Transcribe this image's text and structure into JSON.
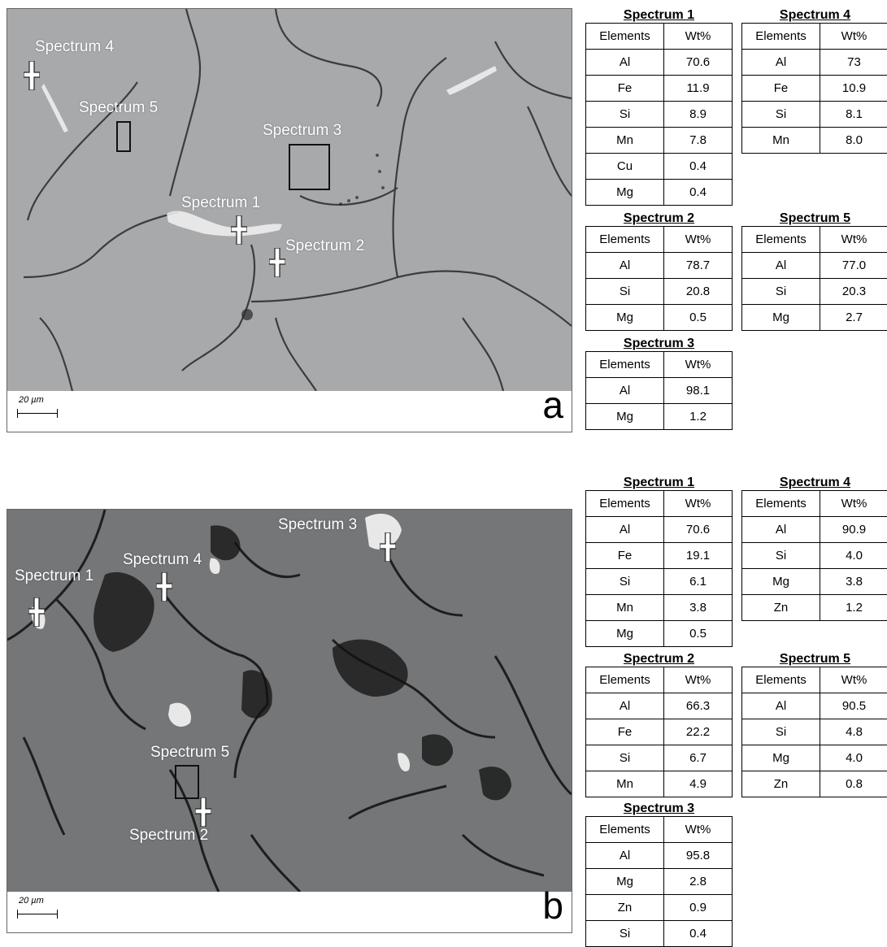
{
  "panels": [
    {
      "letter": "a",
      "scale_label": "20 µm",
      "spectra_labels": [
        "Spectrum 4",
        "Spectrum 5",
        "Spectrum 3",
        "Spectrum 1",
        "Spectrum 2"
      ],
      "tables": [
        {
          "title": "Spectrum 1",
          "header": [
            "Elements",
            "Wt%"
          ],
          "rows": [
            [
              "Al",
              "70.6"
            ],
            [
              "Fe",
              "11.9"
            ],
            [
              "Si",
              "8.9"
            ],
            [
              "Mn",
              "7.8"
            ],
            [
              "Cu",
              "0.4"
            ],
            [
              "Mg",
              "0.4"
            ]
          ]
        },
        {
          "title": "Spectrum 4",
          "header": [
            "Elements",
            "Wt%"
          ],
          "rows": [
            [
              "Al",
              "73"
            ],
            [
              "Fe",
              "10.9"
            ],
            [
              "Si",
              "8.1"
            ],
            [
              "Mn",
              "8.0"
            ]
          ]
        },
        {
          "title": "Spectrum 2",
          "header": [
            "Elements",
            "Wt%"
          ],
          "rows": [
            [
              "Al",
              "78.7"
            ],
            [
              "Si",
              "20.8"
            ],
            [
              "Mg",
              "0.5"
            ]
          ]
        },
        {
          "title": "Spectrum 5",
          "header": [
            "Elements",
            "Wt%"
          ],
          "rows": [
            [
              "Al",
              "77.0"
            ],
            [
              "Si",
              "20.3"
            ],
            [
              "Mg",
              "2.7"
            ]
          ]
        },
        {
          "title": "Spectrum 3",
          "header": [
            "Elements",
            "Wt%"
          ],
          "rows": [
            [
              "Al",
              "98.1"
            ],
            [
              "Mg",
              "1.2"
            ]
          ]
        }
      ]
    },
    {
      "letter": "b",
      "scale_label": "20 µm",
      "spectra_labels": [
        "Spectrum 3",
        "Spectrum 4",
        "Spectrum 1",
        "Spectrum 5",
        "Spectrum 2"
      ],
      "tables": [
        {
          "title": "Spectrum 1",
          "header": [
            "Elements",
            "Wt%"
          ],
          "rows": [
            [
              "Al",
              "70.6"
            ],
            [
              "Fe",
              "19.1"
            ],
            [
              "Si",
              "6.1"
            ],
            [
              "Mn",
              "3.8"
            ],
            [
              "Mg",
              "0.5"
            ]
          ]
        },
        {
          "title": "Spectrum 4",
          "header": [
            "Elements",
            "Wt%"
          ],
          "rows": [
            [
              "Al",
              "90.9"
            ],
            [
              "Si",
              "4.0"
            ],
            [
              "Mg",
              "3.8"
            ],
            [
              "Zn",
              "1.2"
            ]
          ]
        },
        {
          "title": "Spectrum 2",
          "header": [
            "Elements",
            "Wt%"
          ],
          "rows": [
            [
              "Al",
              "66.3"
            ],
            [
              "Fe",
              "22.2"
            ],
            [
              "Si",
              "6.7"
            ],
            [
              "Mn",
              "4.9"
            ]
          ]
        },
        {
          "title": "Spectrum 5",
          "header": [
            "Elements",
            "Wt%"
          ],
          "rows": [
            [
              "Al",
              "90.5"
            ],
            [
              "Si",
              "4.8"
            ],
            [
              "Mg",
              "4.0"
            ],
            [
              "Zn",
              "0.8"
            ]
          ]
        },
        {
          "title": "Spectrum 3",
          "header": [
            "Elements",
            "Wt%"
          ],
          "rows": [
            [
              "Al",
              "95.8"
            ],
            [
              "Mg",
              "2.8"
            ],
            [
              "Zn",
              "0.9"
            ],
            [
              "Si",
              "0.4"
            ]
          ]
        }
      ]
    }
  ]
}
